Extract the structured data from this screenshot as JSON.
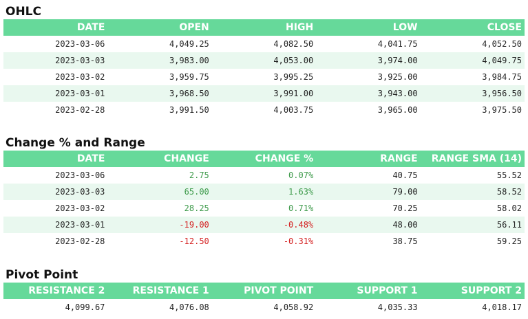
{
  "ohlc": {
    "title": "OHLC",
    "headers": [
      "DATE",
      "OPEN",
      "HIGH",
      "LOW",
      "CLOSE"
    ],
    "rows": [
      [
        "2023-03-06",
        "4,049.25",
        "4,082.50",
        "4,041.75",
        "4,052.50"
      ],
      [
        "2023-03-03",
        "3,983.00",
        "4,053.00",
        "3,974.00",
        "4,049.75"
      ],
      [
        "2023-03-02",
        "3,959.75",
        "3,995.25",
        "3,925.00",
        "3,984.75"
      ],
      [
        "2023-03-01",
        "3,968.50",
        "3,991.00",
        "3,943.00",
        "3,956.50"
      ],
      [
        "2023-02-28",
        "3,991.50",
        "4,003.75",
        "3,965.00",
        "3,975.50"
      ]
    ]
  },
  "change": {
    "title": "Change % and Range",
    "headers": [
      "DATE",
      "CHANGE",
      "CHANGE %",
      "RANGE",
      "RANGE SMA (14)"
    ],
    "rows": [
      [
        "2023-03-06",
        "2.75",
        "0.07%",
        "40.75",
        "55.52"
      ],
      [
        "2023-03-03",
        "65.00",
        "1.63%",
        "79.00",
        "58.52"
      ],
      [
        "2023-03-02",
        "28.25",
        "0.71%",
        "70.25",
        "58.02"
      ],
      [
        "2023-03-01",
        "-19.00",
        "-0.48%",
        "48.00",
        "56.11"
      ],
      [
        "2023-02-28",
        "-12.50",
        "-0.31%",
        "38.75",
        "59.25"
      ]
    ],
    "positive_color": "#3d9a4a",
    "negative_color": "#d42020"
  },
  "pivot": {
    "title": "Pivot Point",
    "headers": [
      "RESISTANCE 2",
      "RESISTANCE 1",
      "PIVOT POINT",
      "SUPPORT 1",
      "SUPPORT 2"
    ],
    "values": [
      "4,099.67",
      "4,076.08",
      "4,058.92",
      "4,035.33",
      "4,018.17"
    ]
  },
  "colors": {
    "header_bg": "#66d99a",
    "stripe_bg": "#e9f8ef"
  }
}
